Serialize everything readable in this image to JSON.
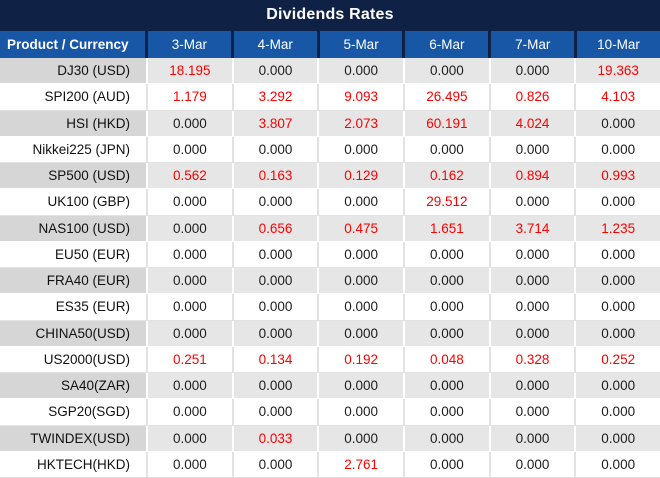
{
  "title": "Dividends Rates",
  "colors": {
    "title_bg": "#0f2145",
    "header_bg": "#1757a6",
    "header_divider": "#0f2145",
    "gray_row_label_bg": "#d6d6d6",
    "gray_row_value_bg": "#e7e6e6",
    "white_row_bg": "#ffffff",
    "value_red": "#fe0000",
    "value_black": "#1d1d1d",
    "header_text": "#ffffff"
  },
  "table": {
    "product_header": "Product / Currency",
    "date_headers": [
      "3-Mar",
      "4-Mar",
      "5-Mar",
      "6-Mar",
      "7-Mar",
      "10-Mar"
    ],
    "rows": [
      {
        "product": "DJ30 (USD)",
        "values": [
          "18.195",
          "0.000",
          "0.000",
          "0.000",
          "0.000",
          "19.363"
        ],
        "red": [
          true,
          false,
          false,
          false,
          false,
          true
        ]
      },
      {
        "product": "SPI200 (AUD)",
        "values": [
          "1.179",
          "3.292",
          "9.093",
          "26.495",
          "0.826",
          "4.103"
        ],
        "red": [
          true,
          true,
          true,
          true,
          true,
          true
        ]
      },
      {
        "product": "HSI (HKD)",
        "values": [
          "0.000",
          "3.807",
          "2.073",
          "60.191",
          "4.024",
          "0.000"
        ],
        "red": [
          false,
          true,
          true,
          true,
          true,
          false
        ]
      },
      {
        "product": "Nikkei225 (JPN)",
        "values": [
          "0.000",
          "0.000",
          "0.000",
          "0.000",
          "0.000",
          "0.000"
        ],
        "red": [
          false,
          false,
          false,
          false,
          false,
          false
        ]
      },
      {
        "product": "SP500 (USD)",
        "values": [
          "0.562",
          "0.163",
          "0.129",
          "0.162",
          "0.894",
          "0.993"
        ],
        "red": [
          true,
          true,
          true,
          true,
          true,
          true
        ]
      },
      {
        "product": "UK100 (GBP)",
        "values": [
          "0.000",
          "0.000",
          "0.000",
          "29.512",
          "0.000",
          "0.000"
        ],
        "red": [
          false,
          false,
          false,
          true,
          false,
          false
        ]
      },
      {
        "product": "NAS100 (USD)",
        "values": [
          "0.000",
          "0.656",
          "0.475",
          "1.651",
          "3.714",
          "1.235"
        ],
        "red": [
          false,
          true,
          true,
          true,
          true,
          true
        ]
      },
      {
        "product": "EU50 (EUR)",
        "values": [
          "0.000",
          "0.000",
          "0.000",
          "0.000",
          "0.000",
          "0.000"
        ],
        "red": [
          false,
          false,
          false,
          false,
          false,
          false
        ]
      },
      {
        "product": "FRA40 (EUR)",
        "values": [
          "0.000",
          "0.000",
          "0.000",
          "0.000",
          "0.000",
          "0.000"
        ],
        "red": [
          false,
          false,
          false,
          false,
          false,
          false
        ]
      },
      {
        "product": "ES35 (EUR)",
        "values": [
          "0.000",
          "0.000",
          "0.000",
          "0.000",
          "0.000",
          "0.000"
        ],
        "red": [
          false,
          false,
          false,
          false,
          false,
          false
        ]
      },
      {
        "product": "CHINA50(USD)",
        "values": [
          "0.000",
          "0.000",
          "0.000",
          "0.000",
          "0.000",
          "0.000"
        ],
        "red": [
          false,
          false,
          false,
          false,
          false,
          false
        ]
      },
      {
        "product": "US2000(USD)",
        "values": [
          "0.251",
          "0.134",
          "0.192",
          "0.048",
          "0.328",
          "0.252"
        ],
        "red": [
          true,
          true,
          true,
          true,
          true,
          true
        ]
      },
      {
        "product": "SA40(ZAR)",
        "values": [
          "0.000",
          "0.000",
          "0.000",
          "0.000",
          "0.000",
          "0.000"
        ],
        "red": [
          false,
          false,
          false,
          false,
          false,
          false
        ]
      },
      {
        "product": "SGP20(SGD)",
        "values": [
          "0.000",
          "0.000",
          "0.000",
          "0.000",
          "0.000",
          "0.000"
        ],
        "red": [
          false,
          false,
          false,
          false,
          false,
          false
        ]
      },
      {
        "product": "TWINDEX(USD)",
        "values": [
          "0.000",
          "0.033",
          "0.000",
          "0.000",
          "0.000",
          "0.000"
        ],
        "red": [
          false,
          true,
          false,
          false,
          false,
          false
        ]
      },
      {
        "product": "HKTECH(HKD)",
        "values": [
          "0.000",
          "0.000",
          "2.761",
          "0.000",
          "0.000",
          "0.000"
        ],
        "red": [
          false,
          false,
          true,
          false,
          false,
          false
        ]
      }
    ]
  }
}
